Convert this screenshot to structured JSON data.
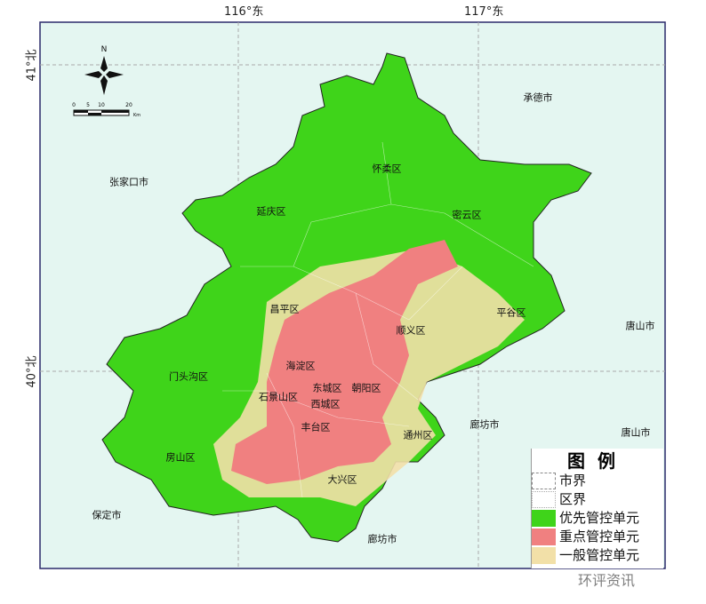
{
  "graticule": {
    "lon": [
      "116°东",
      "117°东"
    ],
    "lat": [
      "41°北",
      "40°北"
    ]
  },
  "north_arrow": {
    "label": "N"
  },
  "scale_bar": {
    "ticks": [
      "0",
      "5",
      "10",
      "20"
    ],
    "unit": "Km"
  },
  "places": [
    {
      "name": "张家口市"
    },
    {
      "name": "承德市"
    },
    {
      "name": "怀柔区"
    },
    {
      "name": "延庆区"
    },
    {
      "name": "密云区"
    },
    {
      "name": "昌平区"
    },
    {
      "name": "平谷区"
    },
    {
      "name": "唐山市"
    },
    {
      "name": "顺义区"
    },
    {
      "name": "海淀区"
    },
    {
      "name": "门头沟区"
    },
    {
      "name": "东城区"
    },
    {
      "name": "朝阳区"
    },
    {
      "name": "石景山区"
    },
    {
      "name": "西城区"
    },
    {
      "name": "丰台区"
    },
    {
      "name": "廊坊市"
    },
    {
      "name": "唐山市"
    },
    {
      "name": "通州区"
    },
    {
      "name": "房山区"
    },
    {
      "name": "大兴区"
    },
    {
      "name": "保定市"
    },
    {
      "name": "廊坊市"
    }
  ],
  "legend": {
    "title": "图例",
    "items": [
      {
        "label": "市界",
        "type": "line"
      },
      {
        "label": "区界",
        "type": "line"
      },
      {
        "label": "优先管控单元",
        "color": "#3fd41a"
      },
      {
        "label": "重点管控单元",
        "color": "#f08080"
      },
      {
        "label": "一般管控单元",
        "color": "#f2e0a8"
      }
    ]
  },
  "colors": {
    "background": "#e4f6f1",
    "priority": "#3fd41a",
    "key": "#f08080",
    "general": "#f2e0a8"
  },
  "watermark": "环评资讯"
}
